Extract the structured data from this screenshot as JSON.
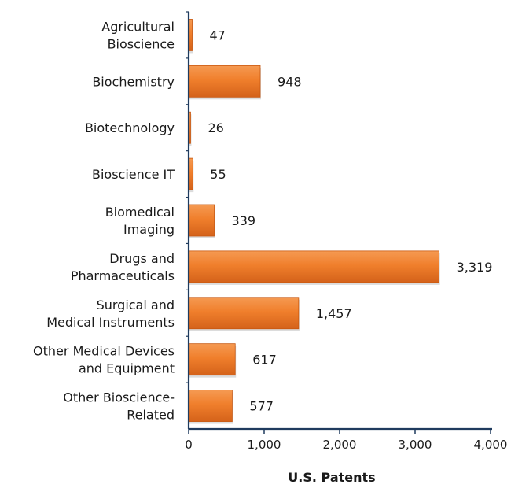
{
  "chart_data": {
    "type": "bar",
    "orientation": "horizontal",
    "categories": [
      [
        "Agricultural",
        "Bioscience"
      ],
      [
        "Biochemistry"
      ],
      [
        "Biotechnology"
      ],
      [
        "Bioscience IT"
      ],
      [
        "Biomedical",
        "Imaging"
      ],
      [
        "Drugs and",
        "Pharmaceuticals"
      ],
      [
        "Surgical and",
        "Medical Instruments"
      ],
      [
        "Other Medical Devices",
        "and Equipment"
      ],
      [
        "Other Bioscience-",
        "Related"
      ]
    ],
    "values": [
      47,
      948,
      26,
      55,
      339,
      3319,
      1457,
      617,
      577
    ],
    "value_labels": [
      "47",
      "948",
      "26",
      "55",
      "339",
      "3,319",
      "1,457",
      "617",
      "577"
    ],
    "xlabel": "U.S. Patents",
    "xlim": [
      0,
      4000
    ],
    "xticks": [
      0,
      1000,
      2000,
      3000,
      4000
    ],
    "xtick_labels": [
      "0",
      "1,000",
      "2,000",
      "3,000",
      "4,000"
    ],
    "grid": false,
    "legend": "none",
    "colors": {
      "bar": "#f07f2c",
      "bar_dark": "#c8570f",
      "axis": "#1f3b5e"
    }
  }
}
